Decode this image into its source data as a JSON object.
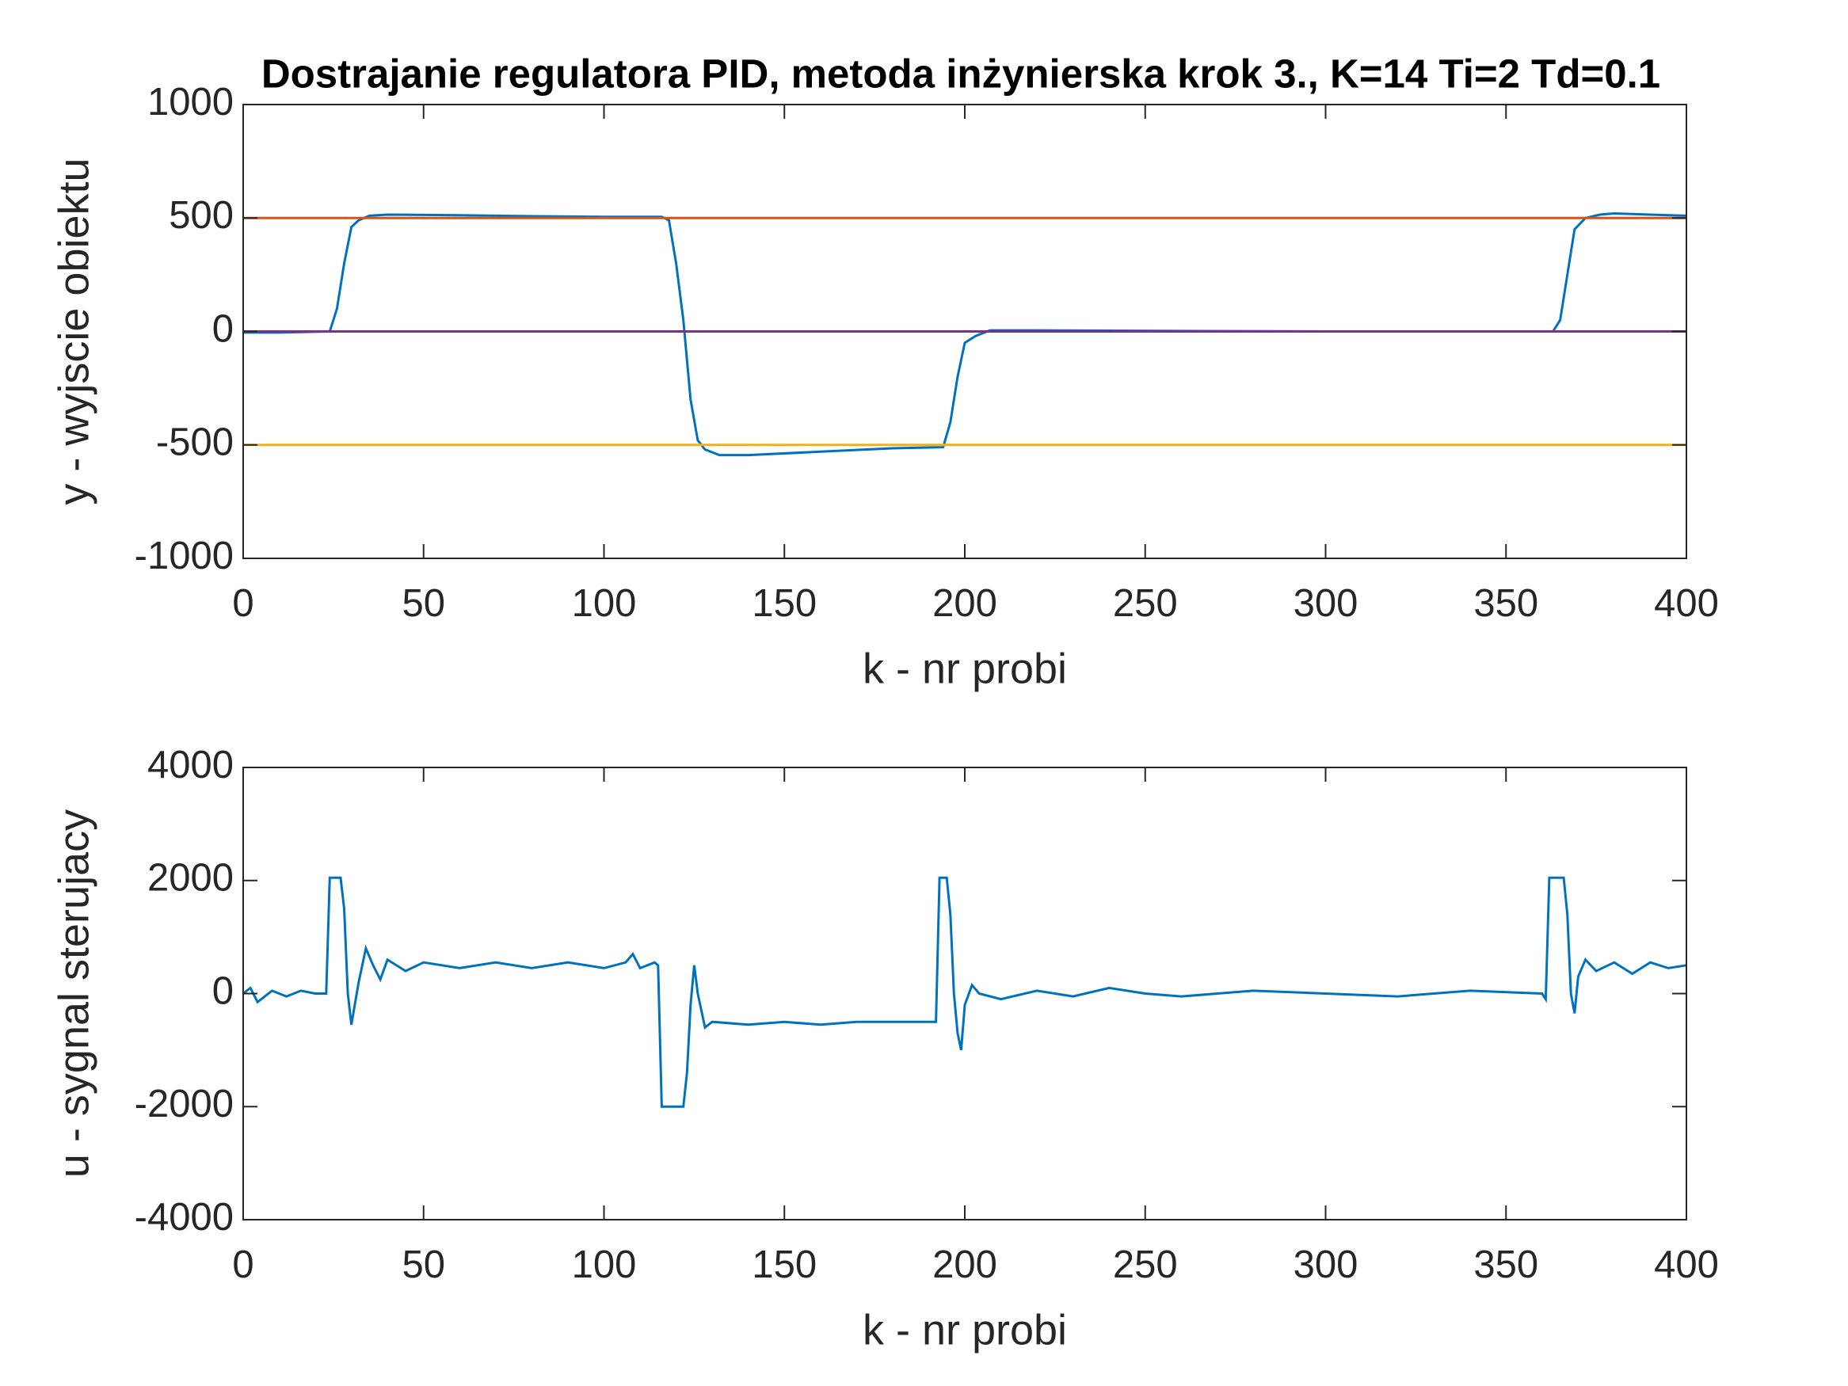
{
  "chart_data": [
    {
      "type": "line",
      "title": "Dostrajanie regulatora PID, metoda inżynierska krok 3., K=14 Ti=2 Td=0.1",
      "xlabel": "k - nr probi",
      "ylabel": "y - wyjscie obiektu",
      "xlim": [
        0,
        400
      ],
      "ylim": [
        -1000,
        1000
      ],
      "xticks": [
        0,
        50,
        100,
        150,
        200,
        250,
        300,
        350,
        400
      ],
      "yticks": [
        -1000,
        -500,
        0,
        500,
        1000
      ],
      "series": [
        {
          "color": "#0072BD",
          "x": [
            0,
            10,
            24,
            26,
            28,
            30,
            32,
            35,
            40,
            60,
            80,
            100,
            116,
            118,
            120,
            122,
            124,
            126,
            128,
            132,
            140,
            160,
            180,
            194,
            196,
            198,
            200,
            203,
            207,
            220,
            260,
            300,
            340,
            363,
            365,
            367,
            369,
            372,
            376,
            380,
            390,
            400
          ],
          "values": [
            -5,
            -5,
            0,
            100,
            300,
            460,
            490,
            510,
            515,
            512,
            508,
            505,
            505,
            490,
            300,
            50,
            -300,
            -480,
            -520,
            -545,
            -545,
            -530,
            -515,
            -510,
            -400,
            -200,
            -50,
            -20,
            5,
            5,
            2,
            0,
            0,
            0,
            50,
            250,
            450,
            500,
            515,
            520,
            515,
            510
          ]
        },
        {
          "color": "#D95319",
          "x": [
            0,
            400
          ],
          "values": [
            500,
            500
          ]
        },
        {
          "color": "#EDB120",
          "x": [
            0,
            400
          ],
          "values": [
            -500,
            -500
          ]
        },
        {
          "color": "#7E2F8E",
          "x": [
            0,
            400
          ],
          "values": [
            0,
            0
          ]
        }
      ]
    },
    {
      "type": "line",
      "xlabel": "k - nr probi",
      "ylabel": "u - sygnal sterujacy",
      "xlim": [
        0,
        400
      ],
      "ylim": [
        -4000,
        4000
      ],
      "xticks": [
        0,
        50,
        100,
        150,
        200,
        250,
        300,
        350,
        400
      ],
      "yticks": [
        -4000,
        -2000,
        0,
        2000,
        4000
      ],
      "series": [
        {
          "color": "#0072BD",
          "x": [
            0,
            2,
            4,
            6,
            8,
            12,
            16,
            20,
            23,
            24,
            27,
            28,
            29,
            30,
            32,
            34,
            36,
            38,
            40,
            45,
            50,
            60,
            70,
            80,
            90,
            100,
            106,
            108,
            110,
            114,
            115,
            116,
            122,
            123,
            124,
            125,
            126,
            128,
            130,
            140,
            150,
            160,
            170,
            180,
            192,
            193,
            195,
            196,
            197,
            198,
            199,
            200,
            202,
            204,
            210,
            220,
            230,
            240,
            250,
            260,
            280,
            300,
            320,
            340,
            360,
            361,
            362,
            366,
            367,
            368,
            369,
            370,
            372,
            375,
            380,
            385,
            390,
            395,
            400
          ],
          "values": [
            0,
            100,
            -150,
            -50,
            50,
            -50,
            50,
            0,
            0,
            2050,
            2050,
            1500,
            0,
            -550,
            200,
            800,
            500,
            250,
            600,
            400,
            550,
            450,
            550,
            450,
            550,
            450,
            550,
            700,
            450,
            550,
            500,
            -2000,
            -2000,
            -1400,
            -200,
            500,
            0,
            -600,
            -500,
            -550,
            -500,
            -550,
            -500,
            -500,
            -500,
            2050,
            2050,
            1400,
            0,
            -700,
            -1000,
            -200,
            150,
            0,
            -100,
            50,
            -50,
            100,
            0,
            -50,
            50,
            0,
            -50,
            50,
            0,
            -100,
            2050,
            2050,
            1400,
            0,
            -350,
            300,
            600,
            400,
            550,
            350,
            550,
            450,
            500
          ]
        }
      ]
    }
  ]
}
